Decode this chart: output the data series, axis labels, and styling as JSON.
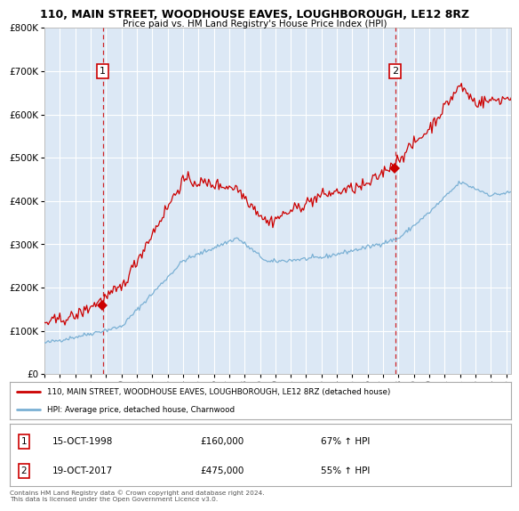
{
  "title1": "110, MAIN STREET, WOODHOUSE EAVES, LOUGHBOROUGH, LE12 8RZ",
  "title2": "Price paid vs. HM Land Registry's House Price Index (HPI)",
  "legend_line1": "110, MAIN STREET, WOODHOUSE EAVES, LOUGHBOROUGH, LE12 8RZ (detached house)",
  "legend_line2": "HPI: Average price, detached house, Charnwood",
  "sale1_date": "15-OCT-1998",
  "sale1_price": "£160,000",
  "sale1_hpi": "67% ↑ HPI",
  "sale1_year": 1998.79,
  "sale1_value": 160000,
  "sale2_date": "19-OCT-2017",
  "sale2_price": "£475,000",
  "sale2_hpi": "55% ↑ HPI",
  "sale2_year": 2017.79,
  "sale2_value": 475000,
  "bg_color": "#dce8f5",
  "red_line_color": "#cc0000",
  "blue_line_color": "#7ab0d4",
  "dashed_color": "#cc0000",
  "footer": "Contains HM Land Registry data © Crown copyright and database right 2024.\nThis data is licensed under the Open Government Licence v3.0.",
  "ylim": [
    0,
    800000
  ],
  "xlim_start": 1995.0,
  "xlim_end": 2025.3
}
